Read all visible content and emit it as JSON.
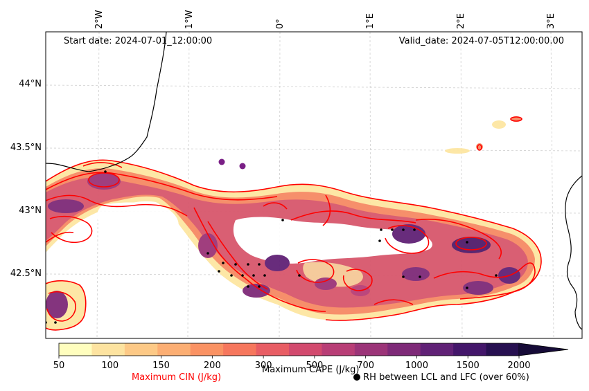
{
  "map": {
    "start_date": "Start date: 2024-07-01_12:00:00",
    "valid_date": "Valid_date: 2024-07-05T12:00:00.00",
    "longitude_labels": [
      "2°W",
      "1°W",
      "0°",
      "1°E",
      "2°E",
      "3°E"
    ],
    "latitude_labels": [
      "44°N",
      "43.5°N",
      "43°N",
      "42.5°N"
    ]
  },
  "colorbar": {
    "title": "Maximum CAPE (J/kg)",
    "ticks": [
      "50",
      "100",
      "150",
      "200",
      "300",
      "500",
      "700",
      "1000",
      "1500",
      "2000"
    ],
    "colors": [
      "#fffebe",
      "#fde3a0",
      "#fdc986",
      "#fcae73",
      "#fa9263",
      "#f6775d",
      "#e85d64",
      "#d24a6e",
      "#b83e76",
      "#9b3478",
      "#7e2a78",
      "#602176",
      "#43166a",
      "#271051",
      "#160b37"
    ]
  },
  "legend": {
    "cin_label": "Maximum CIN (J/kg)",
    "cin_color": "#ff0000",
    "rh_label": "RH between LCL and LFC (over 60%)",
    "rh_marker": "filled-circle"
  }
}
